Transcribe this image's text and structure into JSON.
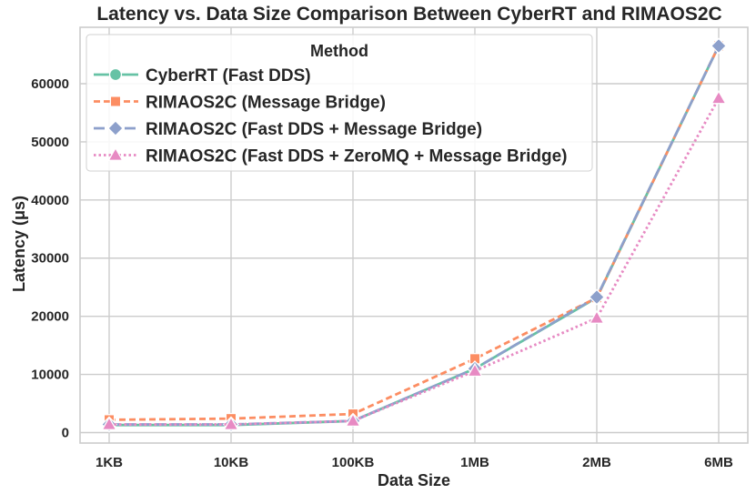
{
  "chart_data": {
    "type": "line",
    "title": "Latency vs. Data Size Comparison Between CyberRT and RIMAOS2C",
    "xlabel": "Data Size",
    "ylabel": "Latency (μs)",
    "categories": [
      "1KB",
      "10KB",
      "100KB",
      "1MB",
      "2MB",
      "6MB"
    ],
    "ylim": [
      -1800,
      69700
    ],
    "yticks": [
      0,
      10000,
      20000,
      30000,
      40000,
      50000,
      60000
    ],
    "grid": true,
    "legend": {
      "title": "Method",
      "position": "top-left"
    },
    "series": [
      {
        "name": "CyberRT (Fast DDS)",
        "color": "#66c2a5",
        "dash": "solid",
        "marker": "circle",
        "values": [
          1300,
          1300,
          2000,
          11000,
          23200,
          66500
        ]
      },
      {
        "name": "RIMAOS2C (Message Bridge)",
        "color": "#fc8d62",
        "dash": "dashed",
        "marker": "square",
        "values": [
          2200,
          2400,
          3200,
          12700,
          23200,
          66500
        ]
      },
      {
        "name": "RIMAOS2C (Fast DDS + Message Bridge)",
        "color": "#8da0cb",
        "dash": "longdash",
        "marker": "diamond",
        "values": [
          1400,
          1400,
          2000,
          11000,
          23300,
          66500
        ]
      },
      {
        "name": "RIMAOS2C (Fast DDS + ZeroMQ + Message Bridge)",
        "color": "#e78ac3",
        "dash": "dotted",
        "marker": "triangle",
        "values": [
          1400,
          1400,
          2000,
          10600,
          19700,
          57500
        ]
      }
    ]
  }
}
